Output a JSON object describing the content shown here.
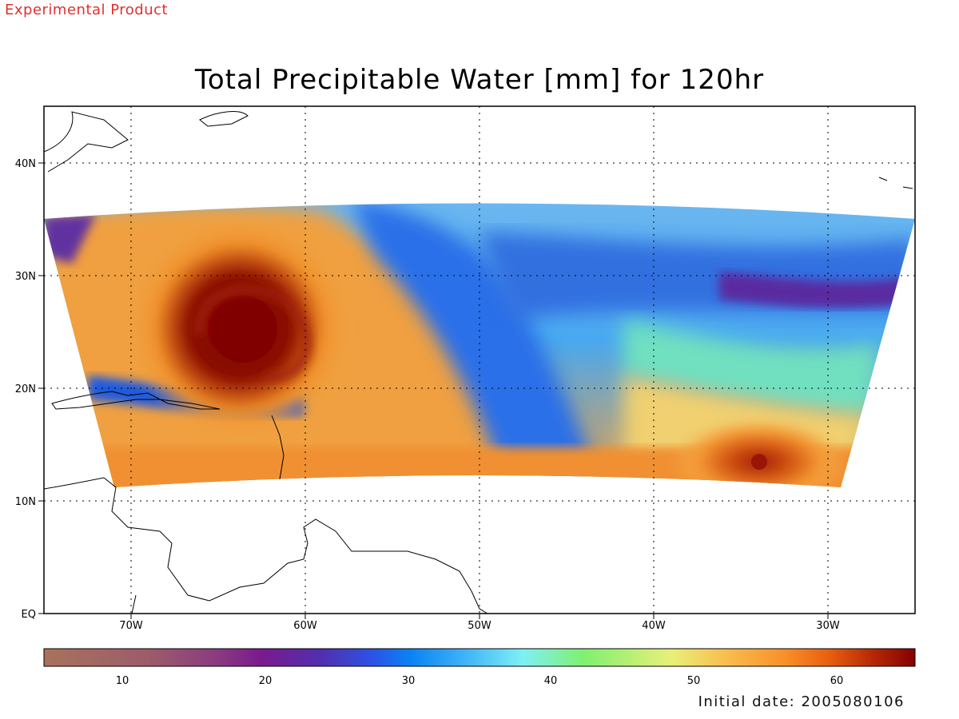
{
  "banner": "Experimental Product",
  "title": "Total Precipitable Water [mm] for 120hr",
  "footer": "Initial date: 2005080106",
  "map": {
    "lon_range": [
      -75,
      -25
    ],
    "lat_range": [
      0,
      45
    ],
    "lat_labels": [
      "40N",
      "30N",
      "20N",
      "10N",
      "EQ"
    ],
    "lon_labels": [
      "70W",
      "60W",
      "50W",
      "40W",
      "30W"
    ],
    "grid": "dotted",
    "features": [
      {
        "name": "hurricane-core",
        "lon": -63,
        "lat": 25.5
      },
      {
        "name": "tropical-wave-vortex",
        "lon": -35,
        "lat": 13.5
      }
    ]
  },
  "colorbar": {
    "min": 5,
    "max": 66,
    "tick_labels": [
      "10",
      "20",
      "30",
      "40",
      "50",
      "60"
    ],
    "colors": [
      "#a8725c",
      "#9c5c6a",
      "#8a3a80",
      "#7a1a8e",
      "#5030b0",
      "#2a55e8",
      "#0a82f4",
      "#3cb0f8",
      "#7ef0f4",
      "#80f070",
      "#e8f078",
      "#f8c050",
      "#f89028",
      "#e86010",
      "#b82a05",
      "#840000"
    ]
  }
}
